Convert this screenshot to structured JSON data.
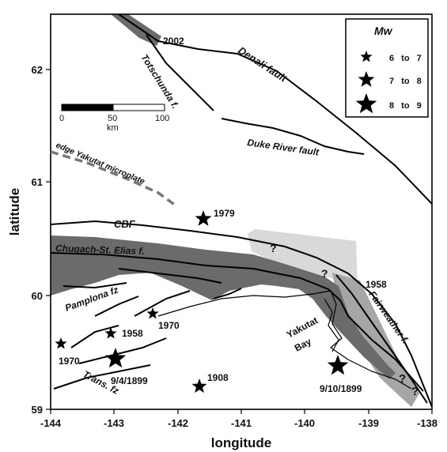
{
  "axes": {
    "xlabel": "longitude",
    "ylabel": "latitude",
    "x_ticks": [
      "-144",
      "-143",
      "-142",
      "-141",
      "-140",
      "-139",
      "-138"
    ],
    "y_ticks": [
      "62",
      "61",
      "60",
      "59"
    ]
  },
  "legend": {
    "title": "Mw",
    "items": [
      {
        "label": "6 to 7",
        "size": "small"
      },
      {
        "label": "7 to 8",
        "size": "medium"
      },
      {
        "label": "8 to 9",
        "size": "large"
      }
    ]
  },
  "scale_bar": {
    "ticks": [
      "0",
      "50",
      "100"
    ],
    "unit": "km"
  },
  "features": {
    "denali": "Denali fault",
    "totschunda": "Totschunda f.",
    "duke": "Duke River fault",
    "yakutat_edge": "edge Yakutat microplate",
    "cbf": "CBF",
    "chugach": "Chugach-St. Elias f.",
    "pamplona": "Pamplona fz",
    "fairweather": "Fairweather f.",
    "trans": "Trans. fz",
    "yakutat_bay_1": "Yakutat",
    "yakutat_bay_2": "Bay",
    "q1": "?",
    "q2": "?",
    "q3": "?",
    "q4": "?"
  },
  "events": {
    "e2002": "2002",
    "e1979": "1979",
    "e1970a": "1970",
    "e1970b": "1970",
    "e1958a": "1958",
    "e1958b": "1958",
    "e1908": "1908",
    "e1899a": "9/4/1899",
    "e1899b": "9/10/1899"
  },
  "colors": {
    "rupture_dark": "#6b6b6b",
    "rupture_light": "#d9d9d9",
    "rupture_mid": "#a6a6a6"
  }
}
